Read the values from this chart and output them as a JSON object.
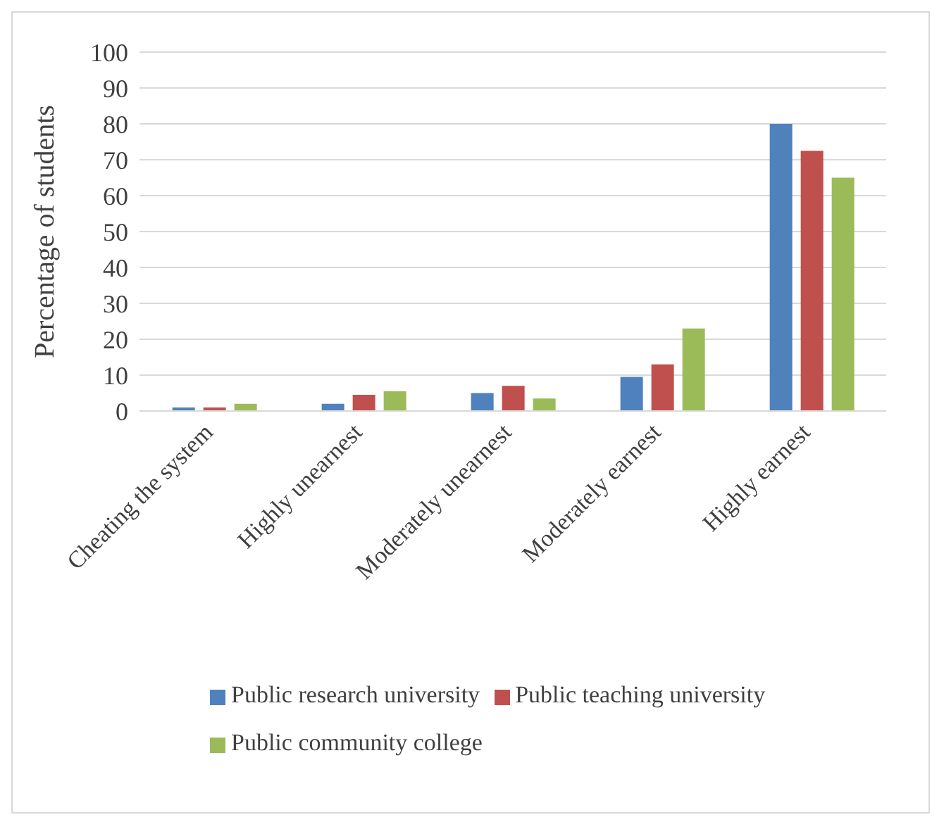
{
  "chart_data": {
    "type": "bar",
    "ylabel": "Percentage of students",
    "categories": [
      "Cheating the system",
      "Highly unearnest",
      "Moderately unearnest",
      "Moderately earnest",
      "Highly earnest"
    ],
    "series": [
      {
        "name": "Public research university",
        "color": "#4f81bd",
        "values": [
          1,
          2,
          5,
          9.5,
          80
        ]
      },
      {
        "name": "Public teaching university",
        "color": "#c0504d",
        "values": [
          1,
          4.5,
          7,
          13,
          72.5
        ]
      },
      {
        "name": "Public community college",
        "color": "#9bbb59",
        "values": [
          2,
          5.5,
          3.5,
          23,
          65
        ]
      }
    ],
    "ylim": [
      0,
      100
    ],
    "yticks": [
      0,
      10,
      20,
      30,
      40,
      50,
      60,
      70,
      80,
      90,
      100
    ],
    "grid": "y",
    "legend": "bottom"
  }
}
